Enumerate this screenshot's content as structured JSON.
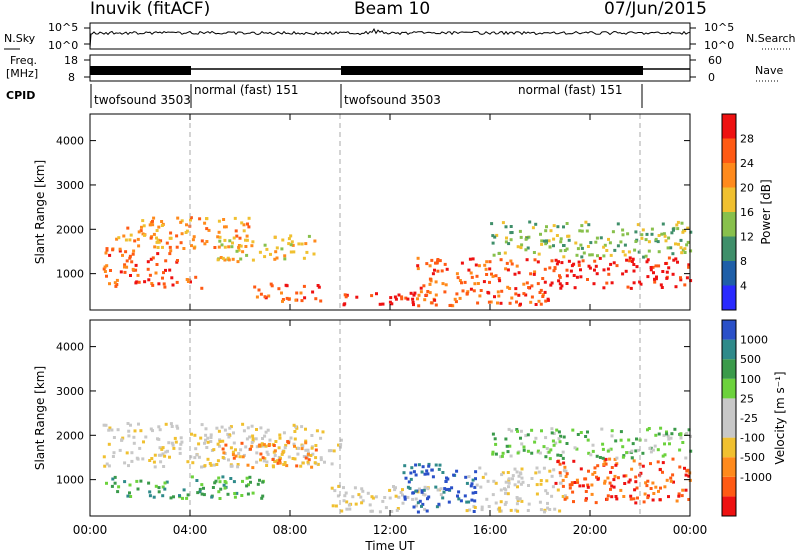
{
  "header": {
    "station": "Inuvik (fitACF)",
    "beam": "Beam 10",
    "date": "07/Jun/2015"
  },
  "top_panels": {
    "nsky_label": "N.Sky",
    "nsky_ticks": [
      "10^5",
      "10^0"
    ],
    "nsearch_label": "N.Search",
    "nsearch_ticks": [
      "10^5",
      "10^0"
    ],
    "freq_label": "Freq.",
    "freq_unit": "[MHz]",
    "freq_ticks": [
      "18",
      "8"
    ],
    "nave_label": "Nave",
    "nave_ticks": [
      "60",
      "0"
    ],
    "cpid_label": "CPID",
    "cpid_segments": [
      {
        "label": "twofsound 3503",
        "start": 0,
        "end": 4
      },
      {
        "label": "normal (fast) 151",
        "start": 4,
        "end": 10
      },
      {
        "label": "twofsound 3503",
        "start": 10,
        "end": 22
      },
      {
        "label": "normal (fast) 151",
        "start": 22,
        "end": 24
      }
    ]
  },
  "colors": {
    "power": [
      "#2a2aff",
      "#1f5fa8",
      "#3f8f6a",
      "#88c04c",
      "#f0c030",
      "#ff8a1c",
      "#ff5a14",
      "#ee1111"
    ],
    "velocity": [
      "#ee1111",
      "#ff5a14",
      "#ff8a1c",
      "#f0c030",
      "#c8c8c8",
      "#c8c8c8",
      "#6cd23c",
      "#3a9a4a",
      "#2f8a8a",
      "#2a50c8"
    ]
  },
  "chart_data": [
    {
      "type": "heatmap",
      "title": "Power",
      "ylabel": "Slant Range [km]",
      "xlabel": "Time UT",
      "xlim": [
        0,
        24
      ],
      "ylim": [
        180,
        4600
      ],
      "x_ticks": [
        "00:00",
        "04:00",
        "08:00",
        "12:00",
        "16:00",
        "20:00",
        "00:00"
      ],
      "y_ticks": [
        "1000",
        "2000",
        "3000",
        "4000"
      ],
      "colorbar": {
        "label": "Power [dB]",
        "ticks": [
          "4",
          "8",
          "12",
          "16",
          "20",
          "24",
          "28"
        ]
      },
      "series": [
        {
          "time": [
            0.5,
            3.5
          ],
          "range": [
            1000,
            1600
          ],
          "level": 6
        },
        {
          "time": [
            0.5,
            4.5
          ],
          "range": [
            700,
            1000
          ],
          "level": 6
        },
        {
          "time": [
            1.0,
            6.5
          ],
          "range": [
            1600,
            2300
          ],
          "level": 5
        },
        {
          "time": [
            5.0,
            9.0
          ],
          "range": [
            1300,
            1900
          ],
          "level": 4
        },
        {
          "time": [
            6.5,
            9.5
          ],
          "range": [
            400,
            800
          ],
          "level": 6
        },
        {
          "time": [
            9.5,
            13.0
          ],
          "range": [
            300,
            600
          ],
          "level": 7
        },
        {
          "time": [
            13.0,
            18.5
          ],
          "range": [
            300,
            1400
          ],
          "level": 6
        },
        {
          "time": [
            18.5,
            24.0
          ],
          "range": [
            700,
            1400
          ],
          "level": 7
        },
        {
          "time": [
            16.0,
            24.0
          ],
          "range": [
            1400,
            2200
          ],
          "level": 3
        }
      ]
    },
    {
      "type": "heatmap",
      "title": "Velocity",
      "ylabel": "Slant Range [km]",
      "xlabel": "Time UT",
      "xlim": [
        0,
        24
      ],
      "ylim": [
        180,
        4600
      ],
      "x_ticks": [
        "00:00",
        "04:00",
        "08:00",
        "12:00",
        "16:00",
        "20:00",
        "00:00"
      ],
      "y_ticks": [
        "1000",
        "2000",
        "3000",
        "4000"
      ],
      "colorbar": {
        "label": "Velocity [m s⁻¹]",
        "ticks": [
          "1000",
          "500",
          "100",
          "25",
          "-25",
          "-100",
          "-500",
          "-1000"
        ]
      },
      "series": [
        {
          "time": [
            0.5,
            10.0
          ],
          "range": [
            1300,
            2300
          ],
          "level": 4
        },
        {
          "time": [
            0.5,
            7.0
          ],
          "range": [
            600,
            1100
          ],
          "level": 7
        },
        {
          "time": [
            5.0,
            9.0
          ],
          "range": [
            1300,
            1900
          ],
          "level": 2
        },
        {
          "time": [
            9.5,
            14.0
          ],
          "range": [
            300,
            900
          ],
          "level": 4
        },
        {
          "time": [
            12.5,
            15.5
          ],
          "range": [
            300,
            1400
          ],
          "level": 9
        },
        {
          "time": [
            15.0,
            19.0
          ],
          "range": [
            300,
            1300
          ],
          "level": 4
        },
        {
          "time": [
            18.5,
            24.0
          ],
          "range": [
            500,
            1500
          ],
          "level": 1
        },
        {
          "time": [
            16.0,
            24.0
          ],
          "range": [
            1500,
            2200
          ],
          "level": 6
        }
      ]
    }
  ],
  "xlabel": "Time UT"
}
